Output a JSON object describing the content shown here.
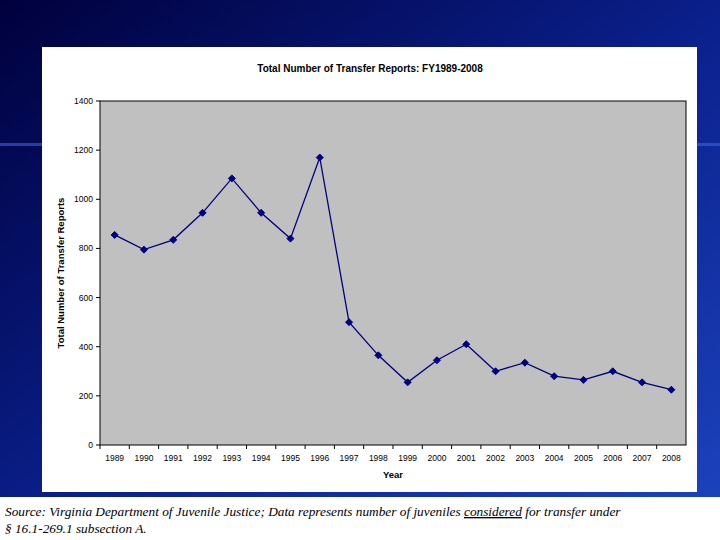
{
  "chart_data": {
    "type": "line",
    "title": "Total Number of Transfer Reports: FY1989-2008",
    "x_label": "Year",
    "y_label": "Total Number of Transfer Reports",
    "categories": [
      "1989",
      "1990",
      "1991",
      "1992",
      "1993",
      "1994",
      "1995",
      "1996",
      "1997",
      "1998",
      "1999",
      "2000",
      "2001",
      "2002",
      "2003",
      "2004",
      "2005",
      "2006",
      "2007",
      "2008"
    ],
    "values": [
      855,
      795,
      835,
      945,
      1085,
      945,
      840,
      1170,
      500,
      365,
      255,
      345,
      410,
      300,
      335,
      280,
      265,
      300,
      255,
      225
    ],
    "color": "#000080",
    "marker": "diamond",
    "line_style": "solid",
    "ylim": [
      0,
      1400
    ],
    "yticks": [
      0,
      200,
      400,
      600,
      800,
      1000,
      1200,
      1400
    ],
    "grid": false
  },
  "footnote": {
    "lines": [
      [
        "Source: Virginia Department of Juvenile Justice; Data represents number of juveniles ",
        "considered",
        " for transfer under"
      ],
      [
        "§ 16.1-269.1 subsection A."
      ]
    ],
    "underlined": "considered"
  }
}
